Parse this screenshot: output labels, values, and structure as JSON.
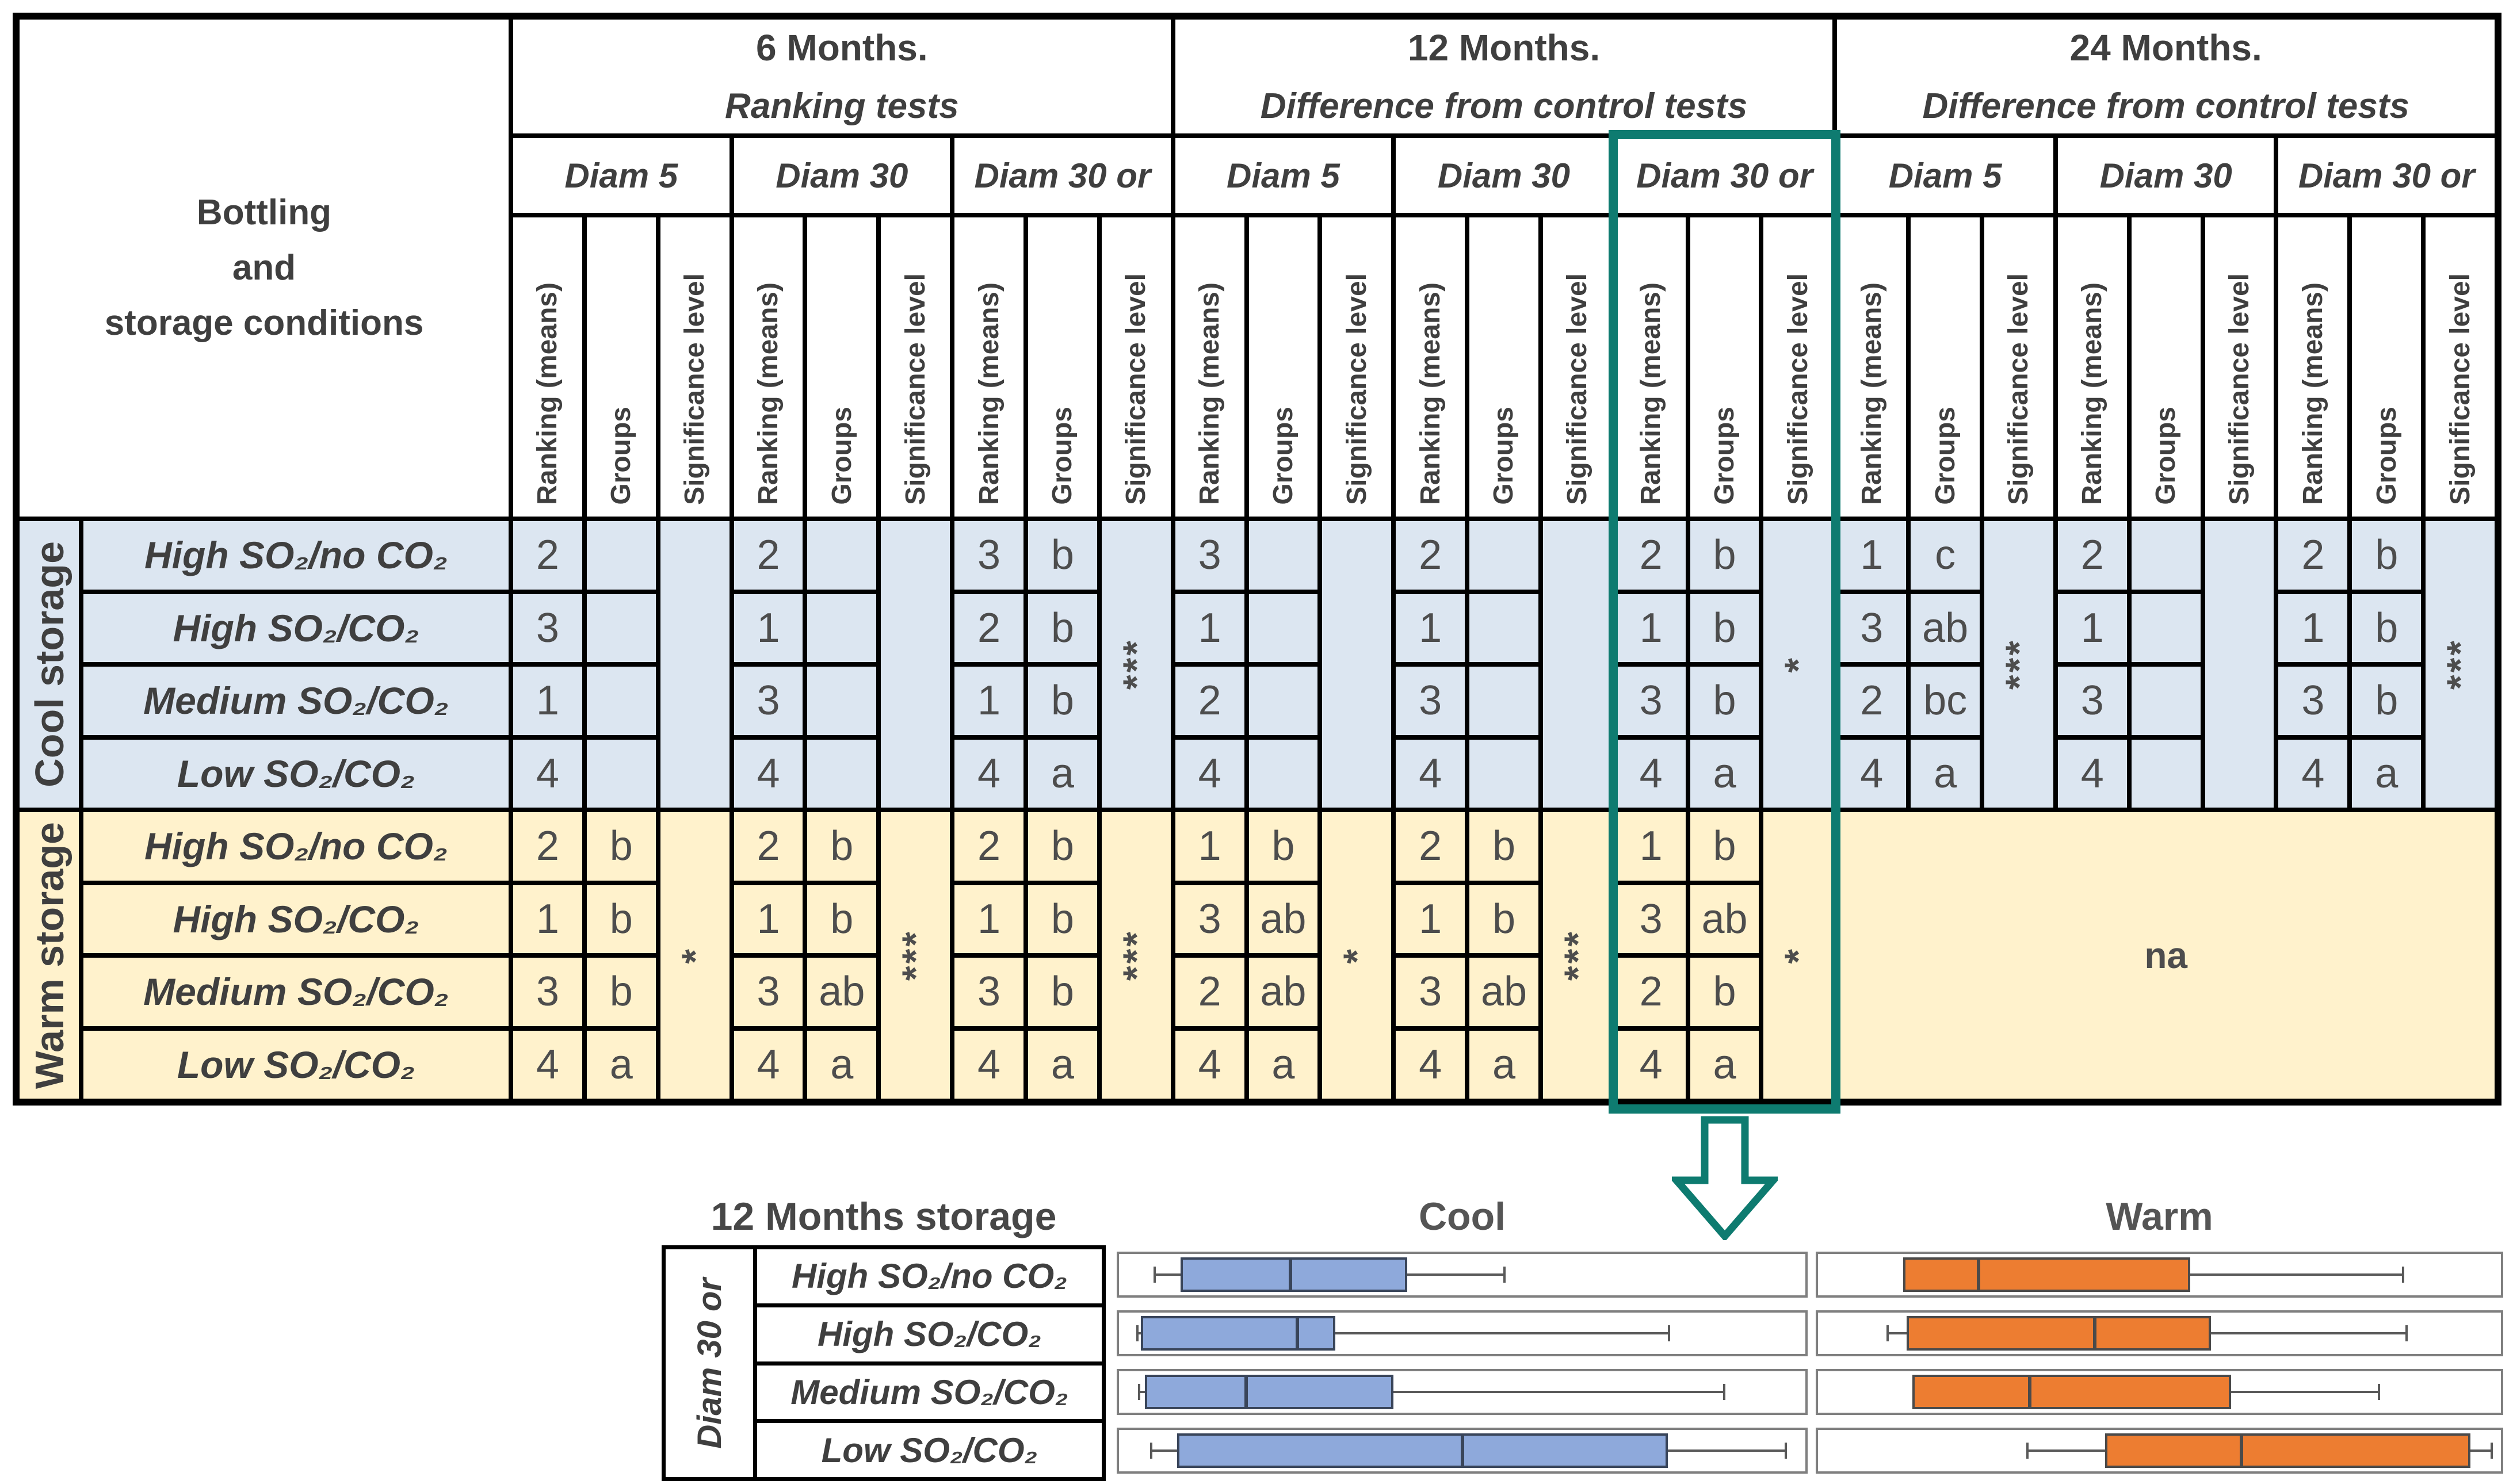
{
  "colors": {
    "cool_row_bg": "#dce6f1",
    "warm_row_bg": "#fff2cc",
    "highlight_teal": "#0e7b70",
    "cool_box_fill": "#8ea9db",
    "warm_box_fill": "#ed7d31",
    "text_gray": "#3f3f3f"
  },
  "table": {
    "corner_lines": [
      "Bottling",
      "and",
      "storage conditions"
    ],
    "sub_columns": [
      "Ranking (means)",
      "Groups",
      "Significance level"
    ],
    "month_groups": [
      {
        "title": "6 Months.",
        "subtitle": "Ranking tests",
        "diams": [
          "Diam 5",
          "Diam 30",
          "Diam 30 or"
        ]
      },
      {
        "title": "12 Months.",
        "subtitle": "Difference from control tests",
        "diams": [
          "Diam 5",
          "Diam 30",
          "Diam 30 or"
        ]
      },
      {
        "title": "24 Months.",
        "subtitle": "Difference from control tests",
        "diams": [
          "Diam 5",
          "Diam 30",
          "Diam 30 or"
        ]
      }
    ],
    "storage_groups": [
      {
        "label": "Cool storage",
        "conditions": [
          "High SO₂/no CO₂",
          "High SO₂/CO₂",
          "Medium SO₂/CO₂",
          "Low SO₂/CO₂"
        ]
      },
      {
        "label": "Warm storage",
        "conditions": [
          "High SO₂/no CO₂",
          "High SO₂/CO₂",
          "Medium SO₂/CO₂",
          "Low SO₂/CO₂"
        ]
      }
    ],
    "cool_data": [
      [
        {
          "r": [
            "2",
            "3",
            "1",
            "4"
          ],
          "g": [
            "",
            "",
            "",
            ""
          ],
          "s": ""
        },
        {
          "r": [
            "2",
            "1",
            "3",
            "4"
          ],
          "g": [
            "",
            "",
            "",
            ""
          ],
          "s": ""
        },
        {
          "r": [
            "3",
            "2",
            "1",
            "4"
          ],
          "g": [
            "b",
            "b",
            "b",
            "a"
          ],
          "s": "***"
        }
      ],
      [
        {
          "r": [
            "3",
            "1",
            "2",
            "4"
          ],
          "g": [
            "",
            "",
            "",
            ""
          ],
          "s": ""
        },
        {
          "r": [
            "2",
            "1",
            "3",
            "4"
          ],
          "g": [
            "",
            "",
            "",
            ""
          ],
          "s": ""
        },
        {
          "r": [
            "2",
            "1",
            "3",
            "4"
          ],
          "g": [
            "b",
            "b",
            "b",
            "a"
          ],
          "s": "*"
        }
      ],
      [
        {
          "r": [
            "1",
            "3",
            "2",
            "4"
          ],
          "g": [
            "c",
            "ab",
            "bc",
            "a"
          ],
          "s": "***"
        },
        {
          "r": [
            "2",
            "1",
            "3",
            "4"
          ],
          "g": [
            "",
            "",
            "",
            ""
          ],
          "s": ""
        },
        {
          "r": [
            "2",
            "1",
            "3",
            "4"
          ],
          "g": [
            "b",
            "b",
            "b",
            "a"
          ],
          "s": "***"
        }
      ]
    ],
    "warm_data": [
      [
        {
          "r": [
            "2",
            "1",
            "3",
            "4"
          ],
          "g": [
            "b",
            "b",
            "b",
            "a"
          ],
          "s": "*"
        },
        {
          "r": [
            "2",
            "1",
            "3",
            "4"
          ],
          "g": [
            "b",
            "b",
            "ab",
            "a"
          ],
          "s": "***"
        },
        {
          "r": [
            "2",
            "1",
            "3",
            "4"
          ],
          "g": [
            "b",
            "b",
            "b",
            "a"
          ],
          "s": "***"
        }
      ],
      [
        {
          "r": [
            "1",
            "3",
            "2",
            "4"
          ],
          "g": [
            "b",
            "ab",
            "ab",
            "a"
          ],
          "s": "*"
        },
        {
          "r": [
            "2",
            "1",
            "3",
            "4"
          ],
          "g": [
            "b",
            "b",
            "ab",
            "a"
          ],
          "s": "***"
        },
        {
          "r": [
            "1",
            "3",
            "2",
            "4"
          ],
          "g": [
            "b",
            "ab",
            "b",
            "a"
          ],
          "s": "*"
        }
      ]
    ],
    "warm_24_label": "na",
    "highlight": {
      "month_index": 1,
      "diam_index": 2,
      "month": "12 Months.",
      "diam": "Diam 30 or"
    }
  },
  "bottom": {
    "title": "12 Months storage",
    "row_header": "Diam 30 or",
    "conditions": [
      "High SO₂/no CO₂",
      "High SO₂/CO₂",
      "Medium SO₂/CO₂",
      "Low SO₂/CO₂"
    ]
  },
  "chart_data": {
    "type": "boxplot",
    "title": "12 Months storage",
    "orientation": "horizontal",
    "categories": [
      "High SO₂/no CO₂",
      "High SO₂/CO₂",
      "Medium SO₂/CO₂",
      "Low SO₂/CO₂"
    ],
    "x_axis": "unlabeled (values are fractions of panel width, 0–1)",
    "legend_position": "panel titles above",
    "series": [
      {
        "name": "Cool",
        "color": "#8ea9db",
        "edge": "#39455a",
        "values": [
          {
            "lo": 0.05,
            "q1": 0.09,
            "med": 0.25,
            "q3": 0.42,
            "hi": 0.56
          },
          {
            "lo": 0.025,
            "q1": 0.032,
            "med": 0.26,
            "q3": 0.315,
            "hi": 0.8
          },
          {
            "lo": 0.028,
            "q1": 0.038,
            "med": 0.185,
            "q3": 0.4,
            "hi": 0.88
          },
          {
            "lo": 0.045,
            "q1": 0.085,
            "med": 0.5,
            "q3": 0.8,
            "hi": 0.97
          }
        ]
      },
      {
        "name": "Warm",
        "color": "#ed7d31",
        "edge": "#4a4a4a",
        "values": [
          {
            "lo": 0.125,
            "q1": 0.125,
            "med": 0.235,
            "q3": 0.545,
            "hi": 0.855
          },
          {
            "lo": 0.1,
            "q1": 0.13,
            "med": 0.405,
            "q3": 0.575,
            "hi": 0.86
          },
          {
            "lo": 0.138,
            "q1": 0.138,
            "med": 0.31,
            "q3": 0.605,
            "hi": 0.82
          },
          {
            "lo": 0.305,
            "q1": 0.42,
            "med": 0.62,
            "q3": 0.955,
            "hi": 0.985
          }
        ]
      }
    ]
  }
}
